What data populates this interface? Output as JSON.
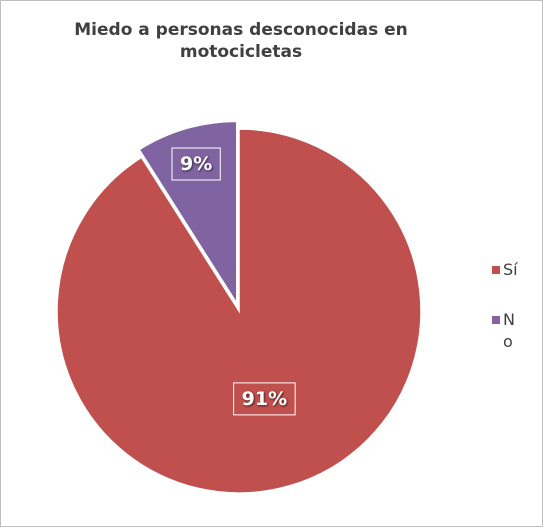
{
  "chart_data": {
    "type": "pie",
    "title": "Miedo a personas desconocidas en motocicletas",
    "categories": [
      "Sí",
      "No"
    ],
    "values": [
      91,
      9
    ],
    "value_labels": [
      "91%",
      "9%"
    ],
    "colors": [
      "#c0504d",
      "#8064a2"
    ],
    "legend": "right"
  }
}
